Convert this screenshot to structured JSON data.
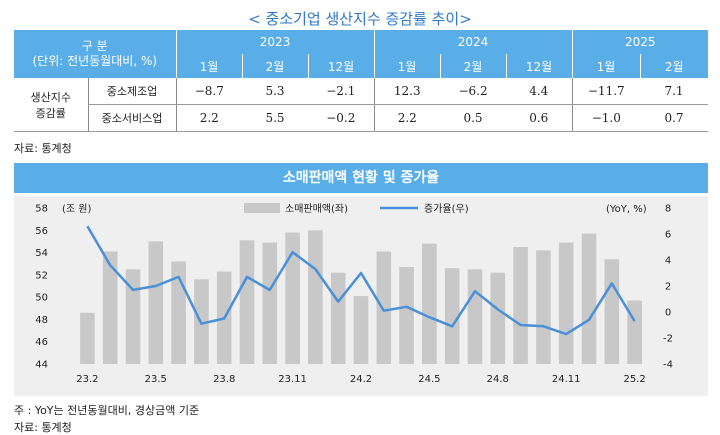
{
  "title": "< 중소기업 생산지수 증감률 추이>",
  "table": {
    "corner_line1": "구 분",
    "corner_line2": "(단위: 전년동월대비, %)",
    "years": [
      "2023",
      "2024",
      "2025"
    ],
    "months": [
      "1월",
      "2월",
      "12월",
      "1월",
      "2월",
      "12월",
      "1월",
      "2월"
    ],
    "group_label_line1": "생산지수",
    "group_label_line2": "증감률",
    "rows": [
      {
        "label": "중소제조업",
        "values": [
          "−8.7",
          "5.3",
          "−2.1",
          "12.3",
          "−6.2",
          "4.4",
          "−11.7",
          "7.1"
        ]
      },
      {
        "label": "중소서비스업",
        "values": [
          "2.2",
          "5.5",
          "−0.2",
          "2.2",
          "0.5",
          "0.6",
          "−1.0",
          "0.7"
        ]
      }
    ],
    "source": "자료: 통계청"
  },
  "banner": "소매판매액 현황 및 증가율",
  "chart_data": {
    "type": "bar",
    "left_unit": "(조 원)",
    "right_unit": "(YoY, %)",
    "legend_position": "top",
    "categories": [
      "23.2",
      "23.3",
      "23.4",
      "23.5",
      "23.6",
      "23.7",
      "23.8",
      "23.9",
      "23.10",
      "23.11",
      "23.12",
      "24.1",
      "24.2",
      "24.3",
      "24.4",
      "24.5",
      "24.6",
      "24.7",
      "24.8",
      "24.9",
      "24.10",
      "24.11",
      "24.12",
      "25.1",
      "25.2"
    ],
    "x_tick_labels": [
      "23.2",
      "23.5",
      "23.8",
      "23.11",
      "24.2",
      "24.5",
      "24.8",
      "24.11",
      "25.2"
    ],
    "series": [
      {
        "name": "소매판매액(좌)",
        "type": "bar",
        "axis": "left",
        "color": "#c8c8c8",
        "values": [
          48.6,
          54.1,
          52.5,
          55.0,
          53.2,
          51.6,
          52.3,
          55.1,
          54.9,
          55.8,
          56.0,
          52.2,
          50.1,
          54.1,
          52.7,
          54.8,
          52.6,
          52.5,
          52.2,
          54.5,
          54.2,
          54.9,
          55.7,
          53.4,
          49.7
        ]
      },
      {
        "name": "증가율(우)",
        "type": "line",
        "axis": "right",
        "color": "#4a90d9",
        "values": [
          6.6,
          3.6,
          1.7,
          2.0,
          2.7,
          -0.9,
          -0.5,
          2.7,
          1.7,
          4.6,
          3.3,
          0.8,
          3.0,
          0.1,
          0.4,
          -0.4,
          -1.1,
          1.6,
          0.2,
          -1.0,
          -1.1,
          -1.7,
          -0.6,
          2.2,
          -0.7
        ]
      }
    ],
    "ylim_left": [
      44,
      58
    ],
    "yticks_left": [
      44,
      46,
      48,
      50,
      52,
      54,
      56,
      58
    ],
    "ylim_right": [
      -4,
      8
    ],
    "yticks_right": [
      -4,
      -2,
      0,
      2,
      4,
      6,
      8
    ],
    "grid": false
  },
  "note": "주 : YoY는 전년동월대비, 경상금액 기준",
  "source2": "자료: 통계청"
}
